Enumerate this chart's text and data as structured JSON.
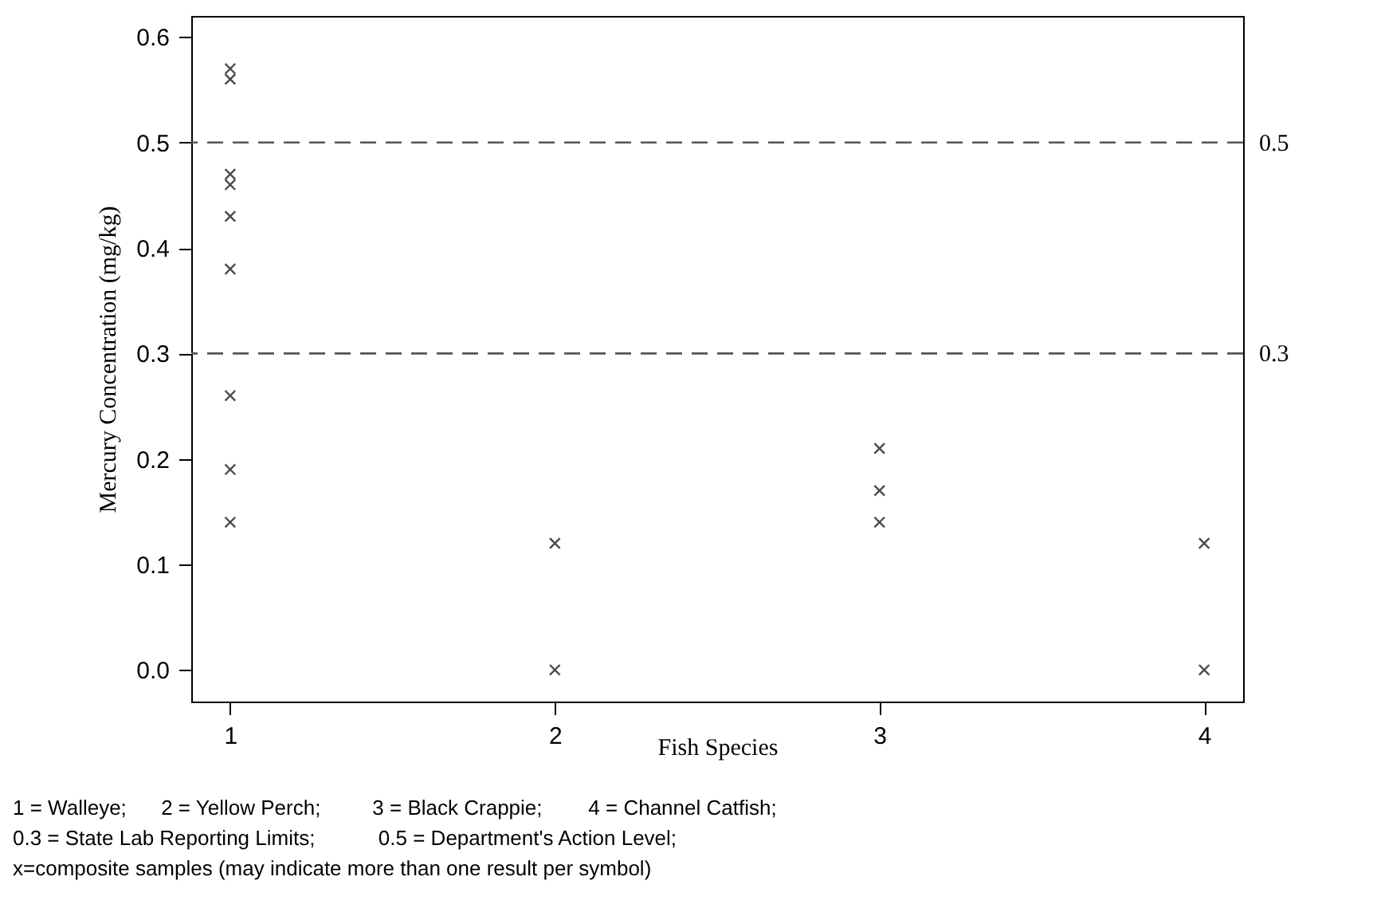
{
  "chart_data": {
    "type": "scatter",
    "xlabel": "Fish Species",
    "ylabel": "Mercury Concentration (mg/kg)",
    "x": [
      1,
      1,
      1,
      1,
      1,
      1,
      1,
      1,
      1,
      2,
      2,
      3,
      3,
      3,
      4,
      4
    ],
    "series": [
      {
        "color": "#000000",
        "values": [
          0.57,
          0.56,
          0.47,
          0.46,
          0.43,
          0.38,
          0.26,
          0.19,
          0.14,
          0.12,
          0.0,
          0.21,
          0.17,
          0.14,
          0.12,
          0.0
        ]
      }
    ],
    "xlim": [
      0.88,
      4.12
    ],
    "xticks": [
      1,
      2,
      3,
      4
    ],
    "ylim": [
      -0.03,
      0.62
    ],
    "yticks": [
      {
        "value": 0,
        "label": "0.0"
      },
      0.1,
      0.2,
      0.3,
      0.4,
      0.5,
      0.6
    ],
    "marker": "cross",
    "grid": false,
    "ref_lines": [
      {
        "axis": "y",
        "value": 0.5,
        "label": "0.5",
        "line_style": "dashed",
        "color": "#555555"
      },
      {
        "axis": "y",
        "value": 0.3,
        "label": "0.3",
        "line_style": "dashed",
        "color": "#555555"
      }
    ],
    "annotations": [
      "1 = Walleye;      2 = Yellow Perch;         3 = Black Crappie;        4 = Channel Catfish;",
      "0.3 = State Lab Reporting Limits;           0.5 = Department's Action Level;",
      "x=composite samples (may indicate more than one result per symbol)"
    ]
  }
}
